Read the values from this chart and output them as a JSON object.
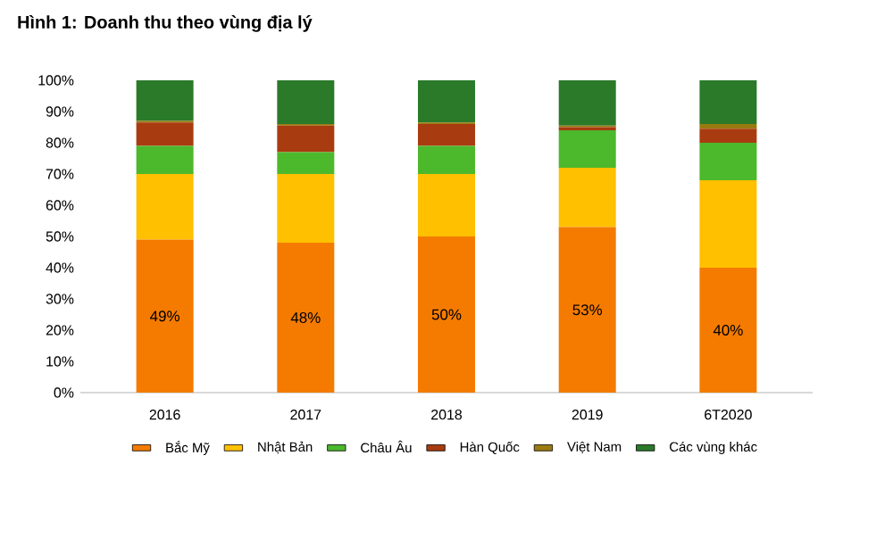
{
  "chart_data": {
    "type": "bar",
    "stacked": true,
    "title": "Hình 1: Doanh thu theo vùng địa lý",
    "categories": [
      "2016",
      "2017",
      "2018",
      "2019",
      "6T2020"
    ],
    "series": [
      {
        "name": "Bắc Mỹ",
        "color": "#f47b00",
        "values": [
          49,
          48,
          50,
          53,
          40
        ],
        "value_labels": [
          "49%",
          "48%",
          "50%",
          "53%",
          "40%"
        ]
      },
      {
        "name": "Nhật Bản",
        "color": "#ffc000",
        "values": [
          21,
          22,
          20,
          19,
          28
        ]
      },
      {
        "name": "Châu Âu",
        "color": "#4cb82c",
        "values": [
          9,
          7,
          9,
          12,
          12
        ]
      },
      {
        "name": "Hàn Quốc",
        "color": "#a83c10",
        "values": [
          7.5,
          8.5,
          7,
          1,
          4.5
        ]
      },
      {
        "name": "Việt Nam",
        "color": "#9a7a10",
        "values": [
          0.5,
          0.5,
          0.5,
          0.5,
          1.5
        ]
      },
      {
        "name": "Các vùng khác",
        "color": "#2a7a2a",
        "values": [
          13,
          14,
          13.5,
          14.5,
          14
        ]
      }
    ],
    "ylim": [
      0,
      100
    ],
    "yticks": [
      {
        "value": 0,
        "label": "0%"
      },
      {
        "value": 10,
        "label": "10%"
      },
      {
        "value": 20,
        "label": "20%"
      },
      {
        "value": 30,
        "label": "30%"
      },
      {
        "value": 40,
        "label": "40%"
      },
      {
        "value": 50,
        "label": "50%"
      },
      {
        "value": 60,
        "label": "60%"
      },
      {
        "value": 70,
        "label": "70%"
      },
      {
        "value": 80,
        "label": "80%"
      },
      {
        "value": 90,
        "label": "90%"
      },
      {
        "value": 100,
        "label": "100%"
      }
    ],
    "grid": false,
    "legend": "bottom"
  }
}
